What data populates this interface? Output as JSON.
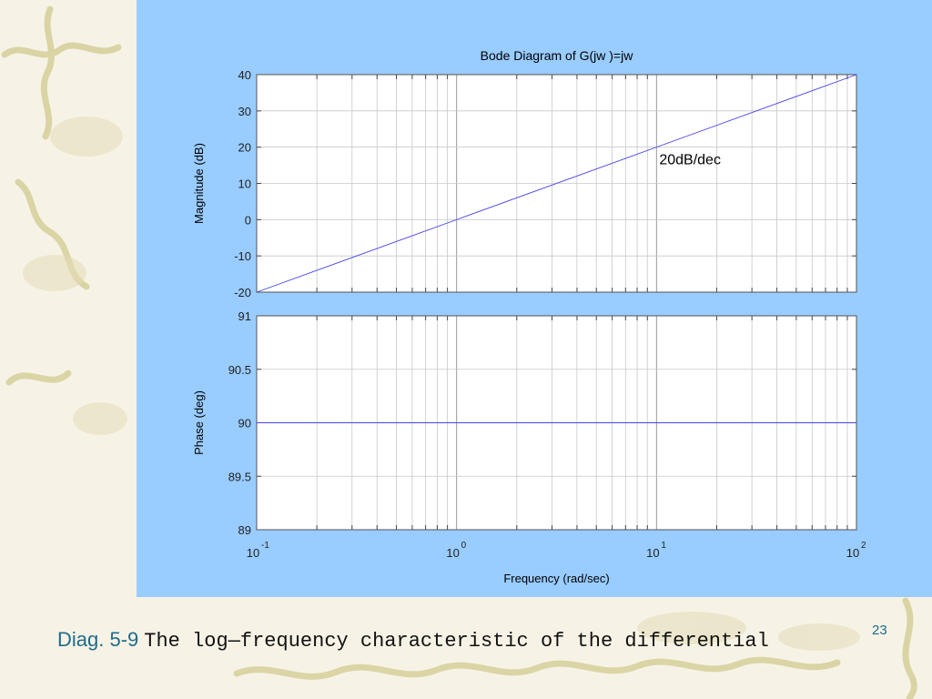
{
  "slide": {
    "caption_label": "Diag. 5-9",
    "caption_text": "The log—frequency characteristic of the differential",
    "page_number": "23",
    "colors": {
      "panel_background": "#99ccff",
      "slide_background": "#f6f3e6",
      "caption_label": "#1f6b8a",
      "series_line": "#4444ee"
    }
  },
  "chart_data": [
    {
      "type": "line",
      "title": "Bode Diagram of  G(jw )=jw",
      "ylabel": "Magnitude (dB)",
      "xlabel": "",
      "xscale": "log",
      "xlim": [
        0.1,
        100
      ],
      "ylim": [
        -20,
        40
      ],
      "yticks": [
        -20,
        -10,
        0,
        10,
        20,
        30,
        40
      ],
      "yticklabels": [
        "-20",
        "-10",
        "0",
        "10",
        "20",
        "30",
        "40"
      ],
      "grid": true,
      "series": [
        {
          "x": [
            0.1,
            100
          ],
          "y": [
            -20,
            40
          ]
        }
      ],
      "annotations": [
        {
          "text": "20dB/dec",
          "x": 10,
          "y": 16
        }
      ]
    },
    {
      "type": "line",
      "title": "",
      "ylabel": "Phase (deg)",
      "xlabel": "Frequency  (rad/sec)",
      "xscale": "log",
      "xlim": [
        0.1,
        100
      ],
      "ylim": [
        89,
        91
      ],
      "yticks": [
        89,
        89.5,
        90,
        90.5,
        91
      ],
      "yticklabels": [
        "89",
        "89.5",
        "90",
        "90.5",
        "91"
      ],
      "xticks": [
        0.1,
        1,
        10,
        100
      ],
      "xticklabels": [
        {
          "base": "10",
          "exp": "-1"
        },
        {
          "base": "10",
          "exp": "0"
        },
        {
          "base": "10",
          "exp": "1"
        },
        {
          "base": "10",
          "exp": "2"
        }
      ],
      "grid": true,
      "series": [
        {
          "x": [
            0.1,
            100
          ],
          "y": [
            90,
            90
          ]
        }
      ]
    }
  ]
}
